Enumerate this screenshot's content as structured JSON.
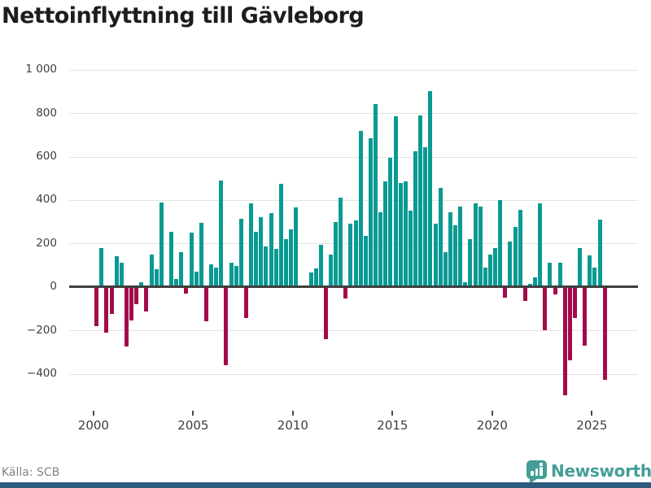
{
  "title": "Nettoinflyttning till Gävleborg",
  "source": "Källa: SCB",
  "brand": {
    "name": "Newsworthy",
    "icon": "bar-chart-speech-bubble-icon",
    "color": "#429e97",
    "footer_bar_color": "#2b5a7c"
  },
  "colors": {
    "positive_bar": "#089a93",
    "negative_bar": "#a30b4b",
    "gridline": "#e3e3e3",
    "zero_line": "#3f3f3f",
    "axis_text": "#3d3d3d",
    "title_text": "#1d1d1d",
    "source_text": "#848484"
  },
  "chart_data": {
    "type": "bar",
    "title": "Nettoinflyttning till Gävleborg",
    "xlabel": "",
    "ylabel": "",
    "frequency": "quarterly",
    "start_year": 2000,
    "start_quarter": 1,
    "ylim": [
      -560,
      1060
    ],
    "grid": true,
    "y_ticks": [
      1000,
      800,
      600,
      400,
      200,
      0,
      -200,
      -400
    ],
    "y_tick_labels": [
      "1 000",
      "800",
      "600",
      "400",
      "200",
      "0",
      "−200",
      "−400"
    ],
    "x_tick_labels": [
      "2000",
      "2005",
      "2010",
      "2015",
      "2020",
      "2025"
    ],
    "values": [
      -180,
      180,
      -210,
      -125,
      140,
      110,
      -275,
      -155,
      -80,
      20,
      -115,
      150,
      80,
      390,
      0,
      255,
      35,
      160,
      -30,
      250,
      70,
      295,
      -160,
      105,
      90,
      490,
      -360,
      110,
      95,
      315,
      -145,
      385,
      255,
      320,
      185,
      340,
      175,
      475,
      220,
      265,
      365,
      0,
      0,
      65,
      85,
      195,
      -240,
      150,
      300,
      410,
      -55,
      290,
      305,
      720,
      235,
      685,
      840,
      345,
      485,
      595,
      785,
      480,
      485,
      350,
      625,
      790,
      645,
      900,
      290,
      455,
      160,
      345,
      285,
      370,
      20,
      220,
      385,
      370,
      90,
      150,
      180,
      400,
      -50,
      210,
      275,
      355,
      -65,
      15,
      45,
      385,
      -200,
      110,
      -35,
      110,
      -500,
      -340,
      -145,
      180,
      -270,
      145,
      90,
      310,
      -430
    ]
  }
}
